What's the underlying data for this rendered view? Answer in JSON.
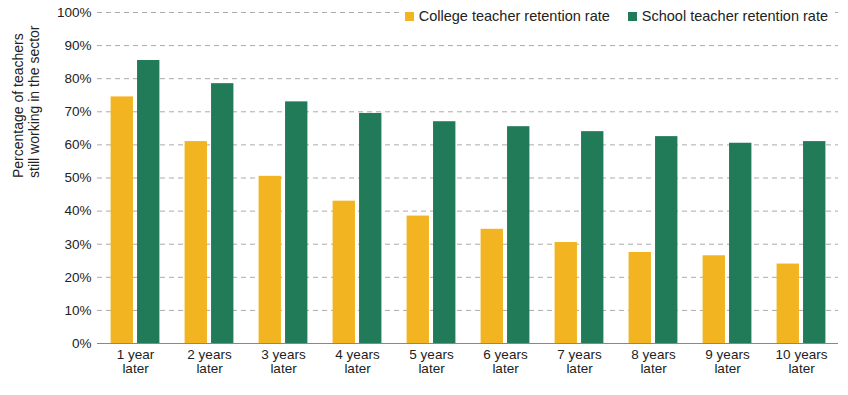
{
  "chart_data": {
    "type": "bar",
    "categories": [
      "1 year later",
      "2 years later",
      "3 years later",
      "4 years later",
      "5 years later",
      "6 years later",
      "7 years later",
      "8 years later",
      "9 years later",
      "10 years later"
    ],
    "series": [
      {
        "name": "College teacher retention rate",
        "color": "#f2b420",
        "values": [
          74.5,
          61,
          50.5,
          43,
          38.5,
          34.5,
          30.5,
          27.5,
          26.5,
          24
        ]
      },
      {
        "name": "School teacher retention rate",
        "color": "#217a58",
        "values": [
          85.5,
          78.5,
          73,
          69.5,
          67,
          65.5,
          64,
          62.5,
          60.5,
          61
        ]
      }
    ],
    "ylabel": "Percentage of teachers\nstill working in the sector",
    "ylim": [
      0,
      100
    ],
    "yticks": [
      {
        "value": 0,
        "label": "0%"
      },
      {
        "value": 10,
        "label": "10%"
      },
      {
        "value": 20,
        "label": "20%"
      },
      {
        "value": 30,
        "label": "30%"
      },
      {
        "value": 40,
        "label": "40%"
      },
      {
        "value": 50,
        "label": "50%"
      },
      {
        "value": 60,
        "label": "60%"
      },
      {
        "value": 70,
        "label": "70%"
      },
      {
        "value": 80,
        "label": "80%"
      },
      {
        "value": 90,
        "label": "90%"
      },
      {
        "value": 100,
        "label": "100%"
      }
    ],
    "grid": true,
    "legend": "top-right"
  }
}
